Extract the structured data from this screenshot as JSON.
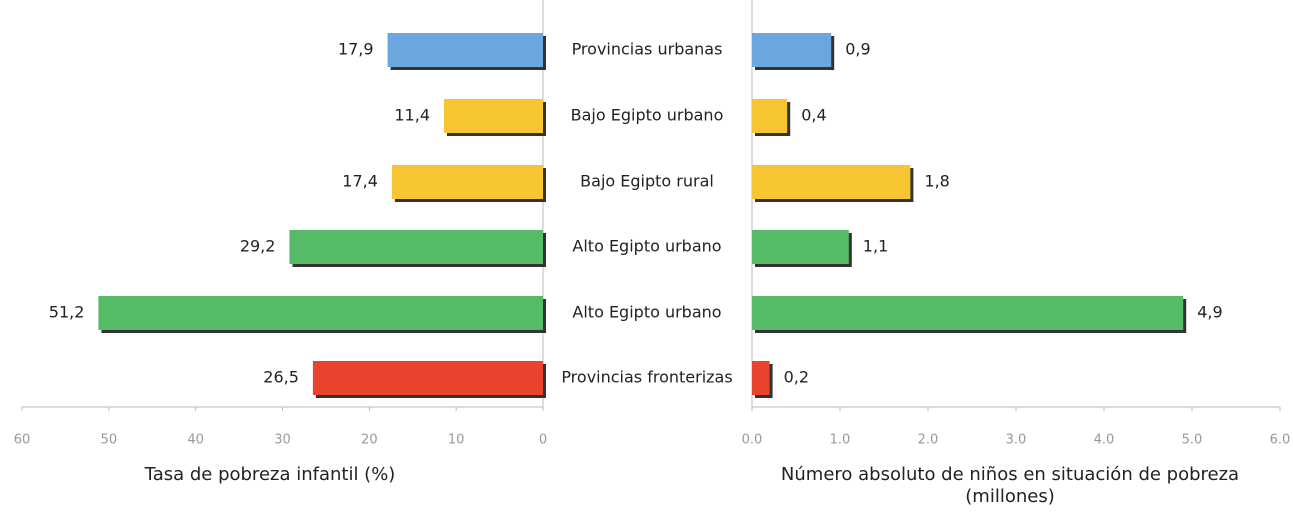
{
  "chart_data": [
    {
      "type": "bar",
      "orientation": "horizontal",
      "reversed": true,
      "categories": [
        "Provincias urbanas",
        "Bajo Egipto urbano",
        "Bajo Egipto rural",
        "Alto Egipto urbano",
        "Alto Egipto urbano",
        "Provincias fronterizas"
      ],
      "values": [
        17.9,
        11.4,
        17.4,
        29.2,
        51.2,
        26.5
      ],
      "value_labels": [
        "17,9",
        "11,4",
        "17,4",
        "29,2",
        "51,2",
        "26,5"
      ],
      "colors": [
        "#6aa7de",
        "#f7c531",
        "#f7c531",
        "#55bb66",
        "#55bb66",
        "#e8432c"
      ],
      "xlim": [
        0,
        60
      ],
      "xticks": [
        0,
        10,
        20,
        30,
        40,
        50,
        60
      ],
      "x_label": "Tasa de pobreza infantil (%)"
    },
    {
      "type": "bar",
      "orientation": "horizontal",
      "reversed": false,
      "values": [
        0.9,
        0.4,
        1.8,
        1.1,
        4.9,
        0.2
      ],
      "value_labels": [
        "0,9",
        "0,4",
        "1,8",
        "1,1",
        "4,9",
        "0,2"
      ],
      "colors": [
        "#6aa7de",
        "#f7c531",
        "#f7c531",
        "#55bb66",
        "#55bb66",
        "#e8432c"
      ],
      "xlim": [
        0,
        6
      ],
      "xticks": [
        {
          "value": 0,
          "label": "0.0"
        },
        {
          "value": 1,
          "label": "1.0"
        },
        {
          "value": 2,
          "label": "2.0"
        },
        {
          "value": 3,
          "label": "3.0"
        },
        {
          "value": 4,
          "label": "4.0"
        },
        {
          "value": 5,
          "label": "5.0"
        },
        {
          "value": 6,
          "label": "6.0"
        }
      ],
      "x_label": "Número absoluto de niños en situación de pobreza (millones)"
    }
  ]
}
